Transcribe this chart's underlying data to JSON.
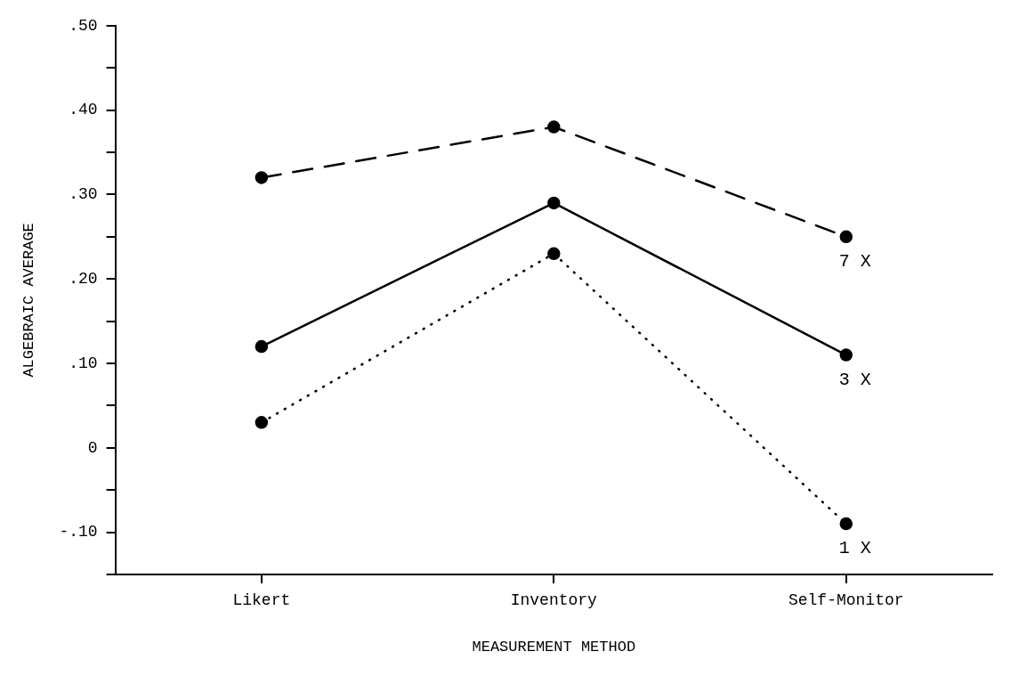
{
  "chart_data": {
    "type": "line",
    "xlabel": "MEASUREMENT METHOD",
    "ylabel": "ALGEBRAIC AVERAGE",
    "categories": [
      "Likert",
      "Inventory",
      "Self-Monitor"
    ],
    "series": [
      {
        "name": "7 X",
        "color": "#000000",
        "values": [
          0.32,
          0.38,
          0.25
        ],
        "line_style": "dashed"
      },
      {
        "name": "3 X",
        "color": "#000000",
        "values": [
          0.12,
          0.29,
          0.11
        ],
        "line_style": "solid"
      },
      {
        "name": "1 X",
        "color": "#000000",
        "values": [
          0.03,
          0.23,
          -0.09
        ],
        "line_style": "dotted"
      }
    ],
    "ylim": [
      -0.15,
      0.5
    ],
    "yticks": [
      {
        "value": -0.15,
        "label": null
      },
      {
        "value": -0.1,
        "label": "-.10"
      },
      {
        "value": -0.05,
        "label": null
      },
      0,
      {
        "value": 0.05,
        "label": null
      },
      {
        "value": 0.1,
        "label": ".10"
      },
      {
        "value": 0.15,
        "label": null
      },
      {
        "value": 0.2,
        "label": ".20"
      },
      {
        "value": 0.25,
        "label": null
      },
      {
        "value": 0.3,
        "label": ".30"
      },
      {
        "value": 0.35,
        "label": null
      },
      {
        "value": 0.4,
        "label": ".40"
      },
      {
        "value": 0.45,
        "label": null
      },
      {
        "value": 0.5,
        "label": ".50"
      }
    ],
    "grid": false,
    "legend": false,
    "marker": "circle"
  }
}
